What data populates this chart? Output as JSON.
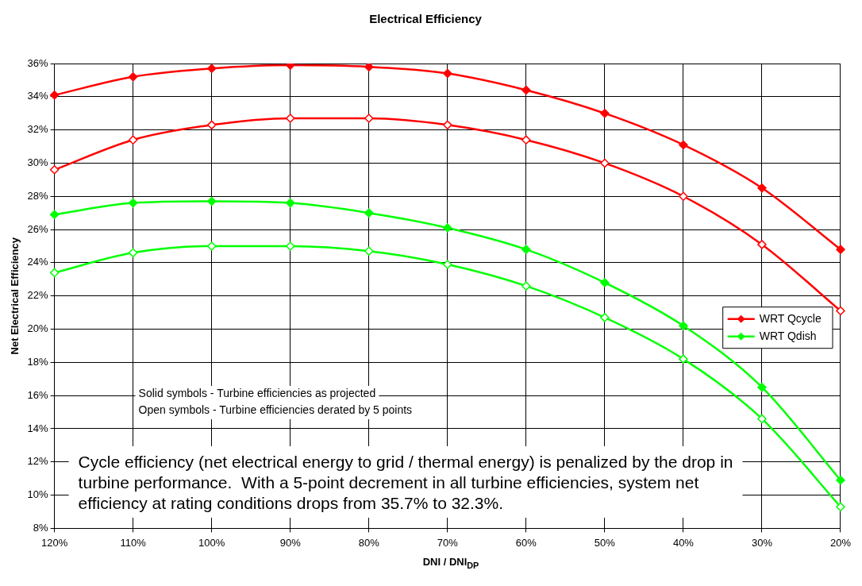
{
  "chart_data": {
    "type": "line",
    "title": "Electrical Efficiency",
    "xlabel": "DNI / DNI$_{DP}$",
    "ylabel": "Net Electrical Efficiency",
    "categories": [
      "120%",
      "110%",
      "100%",
      "90%",
      "80%",
      "70%",
      "60%",
      "50%",
      "40%",
      "30%",
      "20%"
    ],
    "series": [
      {
        "name": "WRT Qcycle",
        "color": "#ff0000",
        "values": [
          34.1,
          35.2,
          35.7,
          35.9,
          35.8,
          35.4,
          34.4,
          33.0,
          31.1,
          28.5,
          24.8
        ]
      },
      {
        "color": "#ff0000",
        "values": [
          29.6,
          31.4,
          32.3,
          32.7,
          32.7,
          32.3,
          31.4,
          30.0,
          28.0,
          25.1,
          21.1
        ]
      },
      {
        "name": "WRT Qdish",
        "color": "#00ff00",
        "values": [
          26.9,
          27.6,
          27.7,
          27.6,
          27.0,
          26.1,
          24.8,
          22.8,
          20.2,
          16.5,
          10.9
        ]
      },
      {
        "color": "#00ff00",
        "values": [
          23.4,
          24.6,
          25.0,
          25.0,
          24.7,
          23.9,
          22.6,
          20.7,
          18.2,
          14.6,
          9.3
        ]
      }
    ],
    "ylim": [
      8,
      36
    ],
    "yticks": [
      {
        "value": 8,
        "label": "8%"
      },
      {
        "value": 10,
        "label": "10%"
      },
      {
        "value": 12,
        "label": "12%"
      },
      {
        "value": 14,
        "label": "14%"
      },
      {
        "value": 16,
        "label": "16%"
      },
      {
        "value": 18,
        "label": "18%"
      },
      {
        "value": 20,
        "label": "20%"
      },
      {
        "value": 22,
        "label": "22%"
      },
      {
        "value": 24,
        "label": "24%"
      },
      {
        "value": 26,
        "label": "26%"
      },
      {
        "value": 28,
        "label": "28%"
      },
      {
        "value": 30,
        "label": "30%"
      },
      {
        "value": 32,
        "label": "32%"
      },
      {
        "value": 34,
        "label": "34%"
      },
      {
        "value": 36,
        "label": "36%"
      }
    ],
    "grid": true,
    "legend": "right",
    "marker": "diamond",
    "line_style": "solid",
    "annotations": [
      "Solid symbols - Turbine efficiencies as projected",
      "Open symbols - Turbine efficiencies derated by 5 points",
      "Cycle efficiency (net electrical energy to grid / thermal energy) is penalized by the drop in turbine performance.  With a 5-point decrement in all turbine efficiencies, system net efficiency at rating conditions drops from 35.7% to 32.3%."
    ]
  }
}
